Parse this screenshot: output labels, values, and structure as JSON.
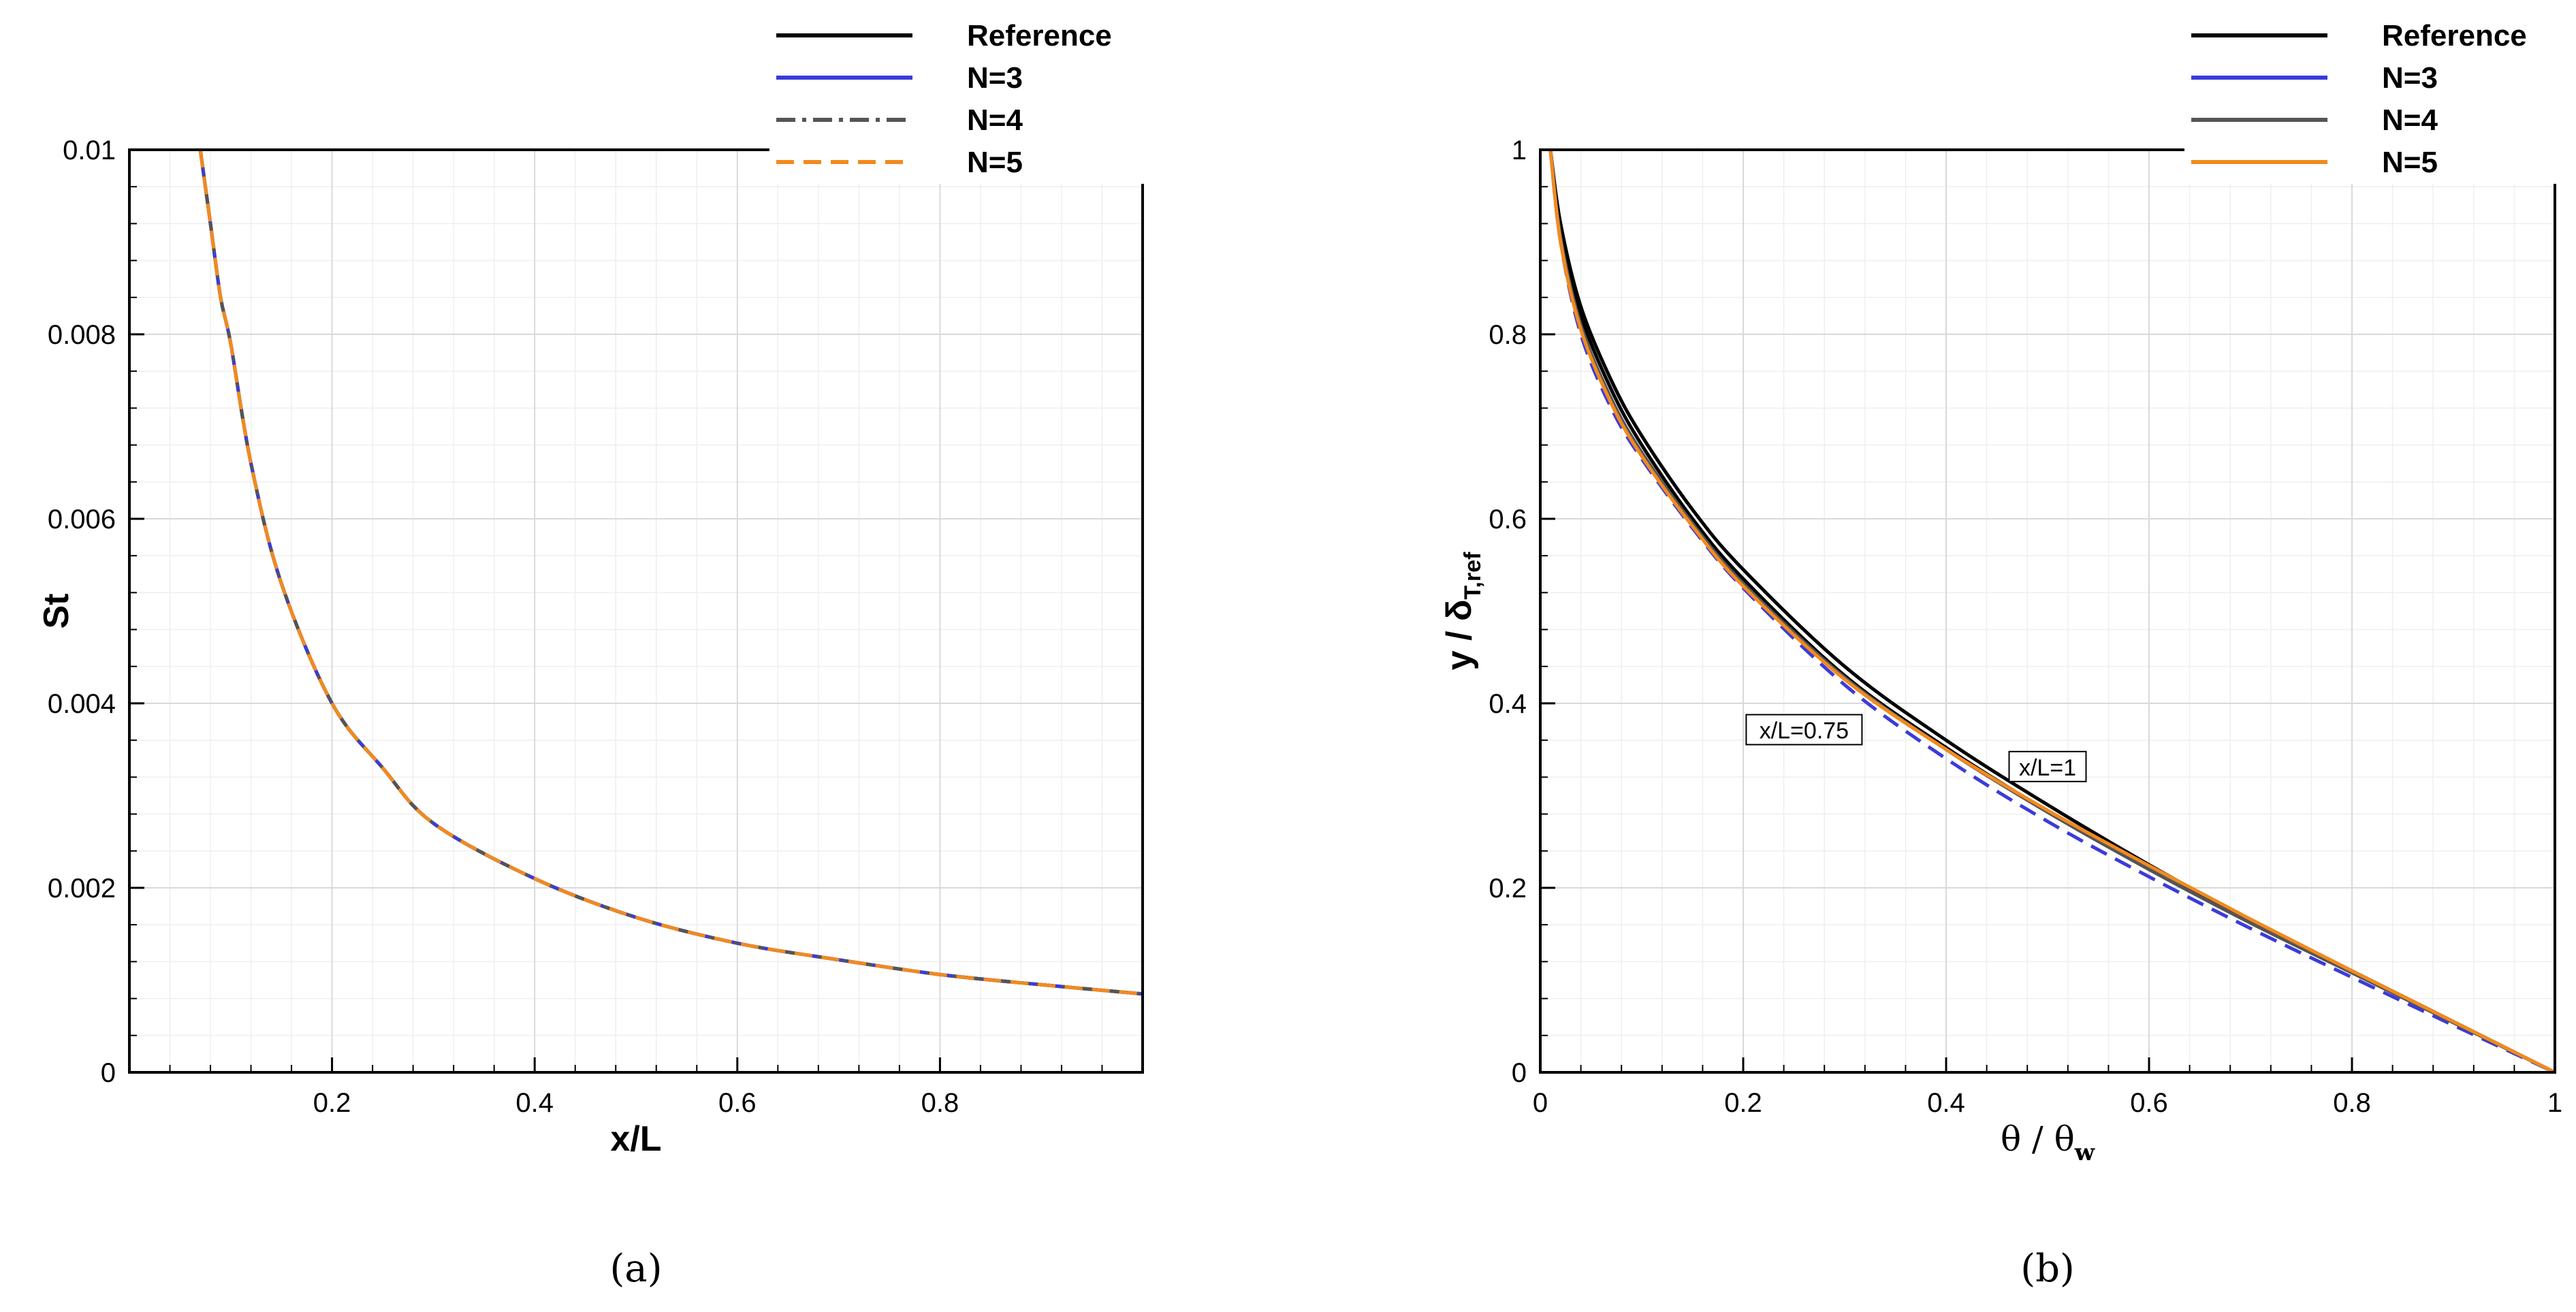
{
  "chart_data": [
    {
      "type": "line",
      "panel_label": "(a)",
      "xlabel": "x/L",
      "ylabel": "St",
      "xlim": [
        0,
        1
      ],
      "ylim": [
        0,
        0.01
      ],
      "xticks": [
        "0.2",
        "0.4",
        "0.6",
        "0.8"
      ],
      "yticks": [
        "0",
        "0.002",
        "0.004",
        "0.006",
        "0.008",
        "0.01"
      ],
      "grid": true,
      "legend_position": "top-right, outside plot",
      "series": [
        {
          "name": "Reference",
          "color": "#000000",
          "style": "solid",
          "x": [
            0.07,
            0.08,
            0.09,
            0.1,
            0.12,
            0.15,
            0.2,
            0.25,
            0.3,
            0.4,
            0.5,
            0.6,
            0.7,
            0.8,
            0.9,
            1.0
          ],
          "y": [
            0.01,
            0.0092,
            0.0084,
            0.0079,
            0.0066,
            0.0053,
            0.004,
            0.0033,
            0.0027,
            0.0021,
            0.00168,
            0.0014,
            0.00122,
            0.00106,
            0.00095,
            0.00085
          ]
        },
        {
          "name": "N=3",
          "color": "#3b3bdb",
          "style": "solid",
          "x": [
            0.07,
            0.08,
            0.09,
            0.1,
            0.12,
            0.15,
            0.2,
            0.25,
            0.3,
            0.4,
            0.5,
            0.6,
            0.7,
            0.8,
            0.9,
            1.0
          ],
          "y": [
            0.01,
            0.0092,
            0.0084,
            0.0079,
            0.0066,
            0.0053,
            0.004,
            0.0033,
            0.0027,
            0.0021,
            0.00168,
            0.0014,
            0.00122,
            0.00106,
            0.00095,
            0.00085
          ]
        },
        {
          "name": "N=4",
          "color": "#555555",
          "style": "dashdot",
          "x": [
            0.07,
            0.08,
            0.09,
            0.1,
            0.12,
            0.15,
            0.2,
            0.25,
            0.3,
            0.4,
            0.5,
            0.6,
            0.7,
            0.8,
            0.9,
            1.0
          ],
          "y": [
            0.01,
            0.0092,
            0.0084,
            0.0079,
            0.0066,
            0.0053,
            0.004,
            0.0033,
            0.0027,
            0.0021,
            0.00168,
            0.0014,
            0.00122,
            0.00106,
            0.00095,
            0.00085
          ]
        },
        {
          "name": "N=5",
          "color": "#f28a1e",
          "style": "dashed",
          "x": [
            0.07,
            0.08,
            0.09,
            0.1,
            0.12,
            0.15,
            0.2,
            0.25,
            0.3,
            0.4,
            0.5,
            0.6,
            0.7,
            0.8,
            0.9,
            1.0
          ],
          "y": [
            0.01,
            0.0092,
            0.0084,
            0.0079,
            0.0066,
            0.0053,
            0.004,
            0.0033,
            0.0027,
            0.0021,
            0.00168,
            0.0014,
            0.00122,
            0.00106,
            0.00095,
            0.00085
          ]
        }
      ]
    },
    {
      "type": "line",
      "panel_label": "(b)",
      "xlabel": "θ / θ",
      "xlabel_sub": "w",
      "ylabel": "y / δ",
      "ylabel_sub": "T,ref",
      "xlim": [
        0,
        1
      ],
      "ylim": [
        0,
        1
      ],
      "xticks": [
        "0",
        "0.2",
        "0.4",
        "0.6",
        "0.8",
        "1"
      ],
      "yticks": [
        "0",
        "0.2",
        "0.4",
        "0.6",
        "0.8",
        "1"
      ],
      "grid": true,
      "legend_position": "top-right, outside plot",
      "annotations": [
        {
          "text": "x/L=0.75",
          "x": 0.26,
          "y": 0.37
        },
        {
          "text": "x/L=1",
          "x": 0.5,
          "y": 0.33
        }
      ],
      "series": [
        {
          "name": "Reference",
          "color": "#000000",
          "style": "solid",
          "location": "x/L=1",
          "x": [
            0.01,
            0.02,
            0.04,
            0.07,
            0.1,
            0.15,
            0.2,
            0.3,
            0.4,
            0.5,
            0.6,
            0.7,
            0.8,
            0.9,
            1.0
          ],
          "y": [
            1.0,
            0.92,
            0.83,
            0.75,
            0.69,
            0.61,
            0.545,
            0.44,
            0.36,
            0.29,
            0.225,
            0.165,
            0.11,
            0.055,
            0.0
          ]
        },
        {
          "name": "Reference",
          "color": "#000000",
          "style": "solid",
          "location": "x/L=0.75",
          "x": [
            0.01,
            0.02,
            0.04,
            0.07,
            0.1,
            0.15,
            0.2,
            0.3,
            0.4,
            0.5,
            0.6,
            0.7,
            0.8,
            0.9,
            1.0
          ],
          "y": [
            1.0,
            0.91,
            0.82,
            0.74,
            0.68,
            0.6,
            0.535,
            0.43,
            0.352,
            0.283,
            0.22,
            0.162,
            0.108,
            0.054,
            0.0
          ]
        },
        {
          "name": "N=3",
          "color": "#3b3bdb",
          "style": "dashed",
          "x": [
            0.01,
            0.02,
            0.04,
            0.07,
            0.1,
            0.15,
            0.2,
            0.3,
            0.4,
            0.5,
            0.6,
            0.7,
            0.8,
            0.9,
            1.0
          ],
          "y": [
            1.0,
            0.9,
            0.8,
            0.72,
            0.665,
            0.59,
            0.525,
            0.42,
            0.34,
            0.272,
            0.212,
            0.156,
            0.103,
            0.051,
            0.0
          ]
        },
        {
          "name": "N=4",
          "color": "#555555",
          "style": "solid",
          "x": [
            0.01,
            0.02,
            0.04,
            0.07,
            0.1,
            0.15,
            0.2,
            0.3,
            0.4,
            0.5,
            0.6,
            0.7,
            0.8,
            0.9,
            1.0
          ],
          "y": [
            1.0,
            0.905,
            0.81,
            0.73,
            0.672,
            0.595,
            0.53,
            0.428,
            0.35,
            0.282,
            0.22,
            0.162,
            0.108,
            0.054,
            0.0
          ]
        },
        {
          "name": "N=5",
          "color": "#f28a1e",
          "style": "solid",
          "x": [
            0.01,
            0.02,
            0.04,
            0.07,
            0.1,
            0.15,
            0.2,
            0.3,
            0.4,
            0.5,
            0.6,
            0.7,
            0.8,
            0.9,
            1.0
          ],
          "y": [
            1.0,
            0.9,
            0.805,
            0.725,
            0.668,
            0.592,
            0.527,
            0.426,
            0.35,
            0.284,
            0.224,
            0.166,
            0.11,
            0.055,
            0.0
          ]
        }
      ]
    }
  ]
}
